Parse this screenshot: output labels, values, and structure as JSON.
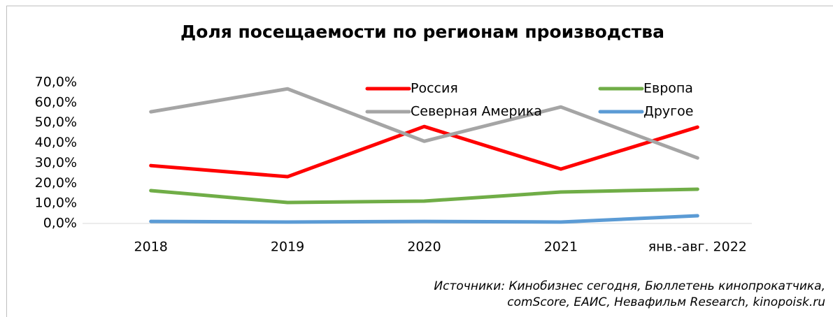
{
  "chart_data": {
    "type": "line",
    "title": "Доля посещаемости по регионам производства",
    "categories": [
      "2018",
      "2019",
      "2020",
      "2021",
      "янв.-авг. 2022"
    ],
    "series": [
      {
        "name": "Россия",
        "color": "#ff0000",
        "values": [
          28.7,
          23.2,
          48.1,
          27.0,
          47.8
        ]
      },
      {
        "name": "Европа",
        "color": "#70ad47",
        "values": [
          16.3,
          10.4,
          11.1,
          15.6,
          17.0
        ]
      },
      {
        "name": "Северная Америка",
        "color": "#a5a5a5",
        "values": [
          55.4,
          66.8,
          40.8,
          57.8,
          32.5
        ]
      },
      {
        "name": "Другое",
        "color": "#5b9bd5",
        "values": [
          1.0,
          0.7,
          1.0,
          0.7,
          3.8
        ]
      }
    ],
    "ylim": [
      0,
      70
    ],
    "yticks": [
      {
        "value": 0,
        "label": "0,0%"
      },
      {
        "value": 10,
        "label": "10,0%"
      },
      {
        "value": 20,
        "label": "20,0%"
      },
      {
        "value": 30,
        "label": "30,0%"
      },
      {
        "value": 40,
        "label": "40,0%"
      },
      {
        "value": 50,
        "label": "50,0%"
      },
      {
        "value": 60,
        "label": "60,0%"
      },
      {
        "value": 70,
        "label": "70,0%"
      }
    ],
    "grid": false,
    "legend": "top",
    "annotations": [
      "Источники: Кинобизнес сегодня, Бюллетень кинопрокатчика,",
      "comScore, ЕАИС, Невафильм Research, kinopoisk.ru"
    ]
  }
}
